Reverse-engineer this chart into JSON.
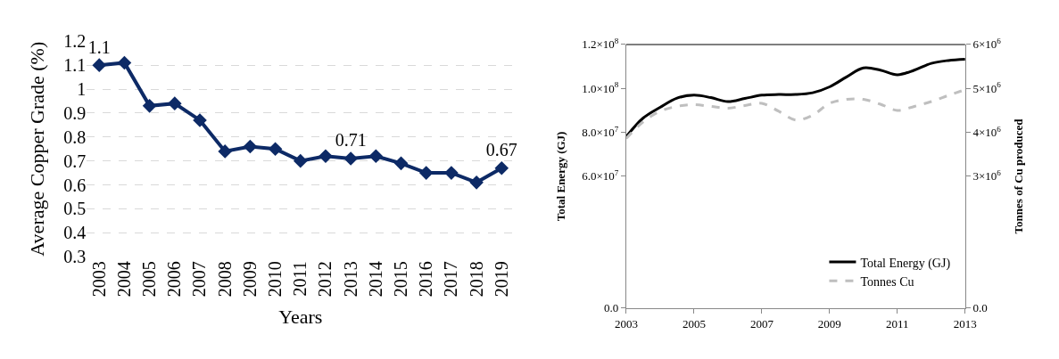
{
  "chart_data": [
    {
      "type": "line",
      "ylabel": "Average Copper Grade (%)",
      "xlabel": "Years",
      "categories": [
        "2003",
        "2004",
        "2005",
        "2006",
        "2007",
        "2008",
        "2009",
        "2010",
        "2011",
        "2012",
        "2013",
        "2014",
        "2015",
        "2016",
        "2017",
        "2018",
        "2019"
      ],
      "series": [
        {
          "color": "#0d2a66",
          "values": [
            1.1,
            1.11,
            0.93,
            0.94,
            0.87,
            0.74,
            0.76,
            0.75,
            0.7,
            0.72,
            0.71,
            0.72,
            0.69,
            0.65,
            0.65,
            0.61,
            0.67
          ],
          "value_labels": [
            "1.1",
            null,
            null,
            null,
            null,
            null,
            null,
            null,
            null,
            null,
            "0.71",
            null,
            null,
            null,
            null,
            null,
            "0.67"
          ]
        }
      ],
      "ylim": [
        0.3,
        1.2
      ],
      "yticks": [
        0.3,
        0.4,
        0.5,
        0.6,
        0.7,
        0.8,
        0.9,
        1,
        1.1,
        1.2
      ],
      "grid": "y",
      "marker": "diamond",
      "line_style": "solid",
      "legend": false
    },
    {
      "type": "line",
      "ylabel": "Total Energy (GJ)",
      "y2label": "Tonnes of Cu produced",
      "x": [
        2003,
        2003.5,
        2004,
        2004.5,
        2005,
        2005.5,
        2006,
        2006.5,
        2007,
        2007.5,
        2008,
        2008.5,
        2009,
        2009.5,
        2010,
        2010.5,
        2011,
        2011.5,
        2012,
        2012.5,
        2013
      ],
      "series": [
        {
          "name": "Total Energy (GJ)",
          "color": "#000000",
          "line_style": "solid",
          "values": [
            78000000.0,
            86500000.0,
            91400000.0,
            95600000.0,
            96900000.0,
            95800000.0,
            94000000.0,
            95400000.0,
            96900000.0,
            97200000.0,
            97200000.0,
            98000000.0,
            100700000.0,
            105200000.0,
            109300000.0,
            108300000.0,
            106200000.0,
            108300000.0,
            111400000.0,
            112700000.0,
            113300000.0
          ]
        },
        {
          "name": "Tonnes Cu",
          "color": "#bfbfbf",
          "line_style": "dashed",
          "axis": "y2",
          "values": [
            3860000.0,
            4240000.0,
            4480000.0,
            4590000.0,
            4630000.0,
            4590000.0,
            4550000.0,
            4610000.0,
            4660000.0,
            4480000.0,
            4280000.0,
            4390000.0,
            4660000.0,
            4750000.0,
            4750000.0,
            4640000.0,
            4500000.0,
            4590000.0,
            4700000.0,
            4840000.0,
            4970000.0
          ]
        }
      ],
      "xlim": [
        2003,
        2013
      ],
      "xticks": [
        2003,
        2005,
        2007,
        2009,
        2011,
        2013
      ],
      "ylim": [
        0,
        120000000.0
      ],
      "yticks": [
        {
          "value": 0,
          "label": "0.0"
        },
        {
          "value": 60000000.0,
          "label": "6.0×10$^{7}$"
        },
        {
          "value": 80000000.0,
          "label": "8.0×10$^{7}$"
        },
        {
          "value": 100000000.0,
          "label": "1.0×10$^{8}$"
        },
        {
          "value": 120000000.0,
          "label": "1.2×10$^{8}$"
        }
      ],
      "y2lim": [
        0,
        6000000.0
      ],
      "y2ticks": [
        {
          "value": 0,
          "label": "0.0"
        },
        {
          "value": 3000000.0,
          "label": "3×10$^{6}$"
        },
        {
          "value": 4000000.0,
          "label": "4×10$^{6}$"
        },
        {
          "value": 5000000.0,
          "label": "5×10$^{6}$"
        },
        {
          "value": 6000000.0,
          "label": "6×10$^{6}$"
        }
      ],
      "grid": false,
      "marker": "none",
      "legend": "bottom right"
    }
  ]
}
